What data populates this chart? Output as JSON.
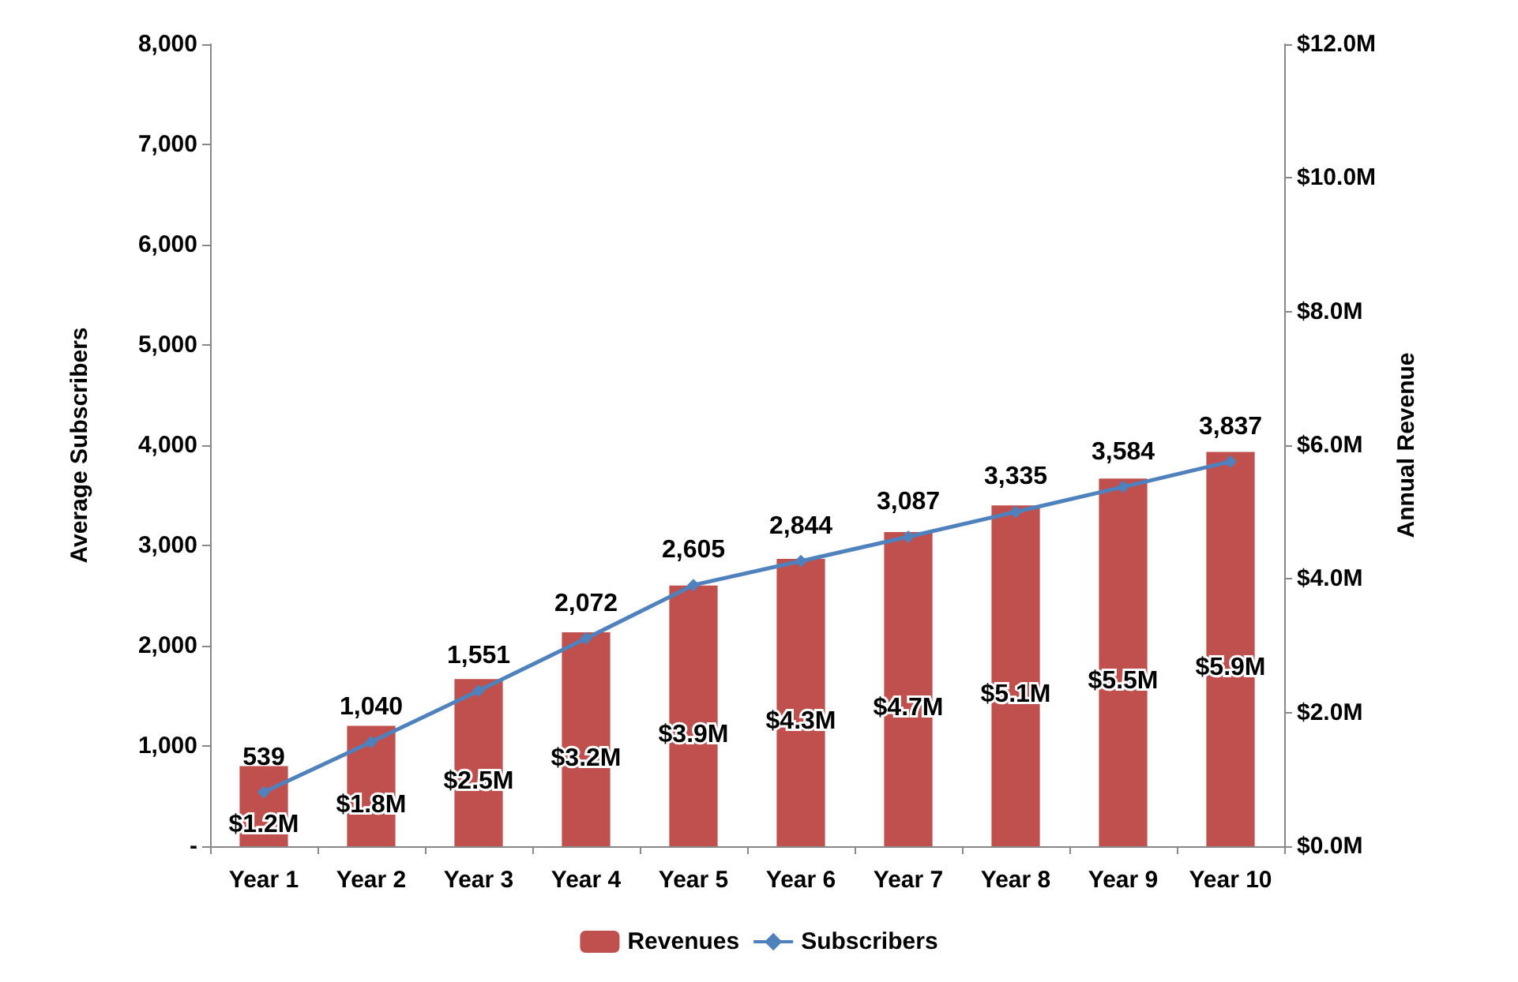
{
  "chart_data": {
    "type": "bar",
    "categories": [
      "Year 1",
      "Year 2",
      "Year 3",
      "Year 4",
      "Year 5",
      "Year 6",
      "Year 7",
      "Year 8",
      "Year 9",
      "Year 10"
    ],
    "ylabel": "Average Subscribers",
    "y2label": "Annual Revenue",
    "ylim": [
      0,
      8000
    ],
    "yticks": [
      {
        "value": 0,
        "label": "-"
      },
      {
        "value": 1000,
        "label": "1,000"
      },
      {
        "value": 2000,
        "label": "2,000"
      },
      {
        "value": 3000,
        "label": "3,000"
      },
      {
        "value": 4000,
        "label": "4,000"
      },
      {
        "value": 5000,
        "label": "5,000"
      },
      {
        "value": 6000,
        "label": "6,000"
      },
      {
        "value": 7000,
        "label": "7,000"
      },
      {
        "value": 8000,
        "label": "8,000"
      }
    ],
    "y2lim": [
      0,
      12
    ],
    "y2ticks": [
      {
        "value": 0,
        "label": "$0.0M"
      },
      {
        "value": 2,
        "label": "$2.0M"
      },
      {
        "value": 4,
        "label": "$4.0M"
      },
      {
        "value": 6,
        "label": "$6.0M"
      },
      {
        "value": 8,
        "label": "$8.0M"
      },
      {
        "value": 10,
        "label": "$10.0M"
      },
      {
        "value": 12,
        "label": "$12.0M"
      }
    ],
    "series": [
      {
        "name": "Revenues",
        "axis": "y2",
        "color": "#c0504d",
        "values": [
          1.2,
          1.8,
          2.5,
          3.2,
          3.9,
          4.3,
          4.7,
          5.1,
          5.5,
          5.9
        ],
        "value_labels": [
          "$1.2M",
          "$1.8M",
          "$2.5M",
          "$3.2M",
          "$3.9M",
          "$4.3M",
          "$4.7M",
          "$5.1M",
          "$5.5M",
          "$5.9M"
        ]
      },
      {
        "name": "Subscribers",
        "type": "line",
        "color": "#4f81bd",
        "marker": "diamond",
        "values": [
          539,
          1040,
          1551,
          2072,
          2605,
          2844,
          3087,
          3335,
          3584,
          3837
        ],
        "value_labels": [
          "539",
          "1,040",
          "1,551",
          "2,072",
          "2,605",
          "2,844",
          "3,087",
          "3,335",
          "3,584",
          "3,837"
        ]
      }
    ],
    "grid": false,
    "legend": "bottom"
  }
}
